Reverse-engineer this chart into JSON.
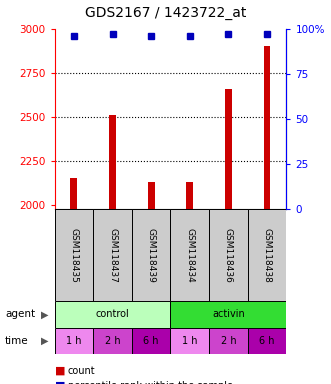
{
  "title": "GDS2167 / 1423722_at",
  "samples": [
    "GSM118435",
    "GSM118437",
    "GSM118439",
    "GSM118434",
    "GSM118436",
    "GSM118438"
  ],
  "counts": [
    2150,
    2510,
    2130,
    2130,
    2660,
    2900
  ],
  "percentile_ranks": [
    96,
    97,
    96,
    96,
    97,
    97
  ],
  "ylim_left": [
    1975,
    3000
  ],
  "ylim_right": [
    0,
    100
  ],
  "yticks_left": [
    2000,
    2250,
    2500,
    2750,
    3000
  ],
  "yticks_right": [
    0,
    25,
    50,
    75,
    100
  ],
  "ytick_labels_right": [
    "0",
    "25",
    "50",
    "75",
    "100%"
  ],
  "bar_color": "#cc0000",
  "dot_color": "#0000bb",
  "agent_control_color": "#bbffbb",
  "agent_activin_color": "#33dd33",
  "time_colors": [
    "#ee88ee",
    "#cc44cc",
    "#aa00aa"
  ],
  "time_labels": [
    "1 h",
    "2 h",
    "6 h",
    "1 h",
    "2 h",
    "6 h"
  ],
  "background_color": "#ffffff",
  "title_fontsize": 10,
  "tick_fontsize": 7.5,
  "sample_fontsize": 6.5,
  "legend_fontsize": 7,
  "bar_width": 0.18
}
